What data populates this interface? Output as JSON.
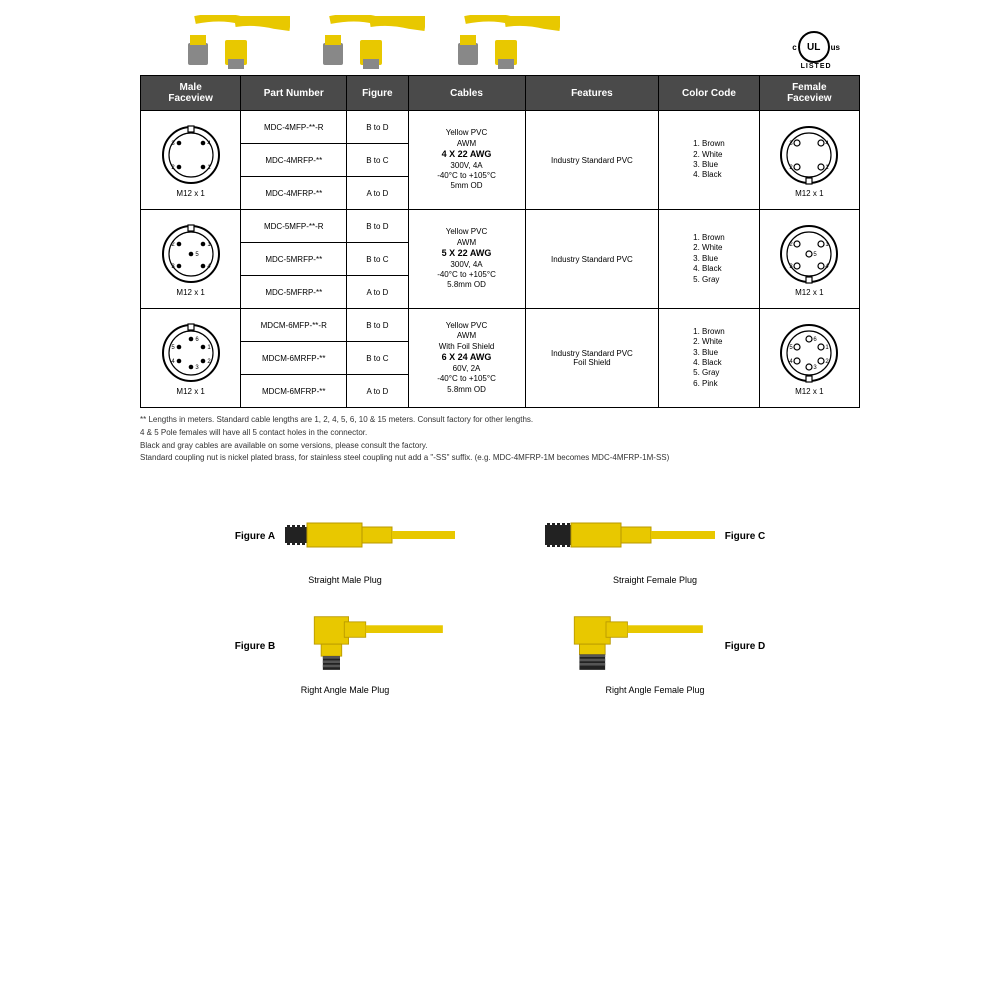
{
  "ulLogo": {
    "c": "c",
    "ul": "UL",
    "us": "us",
    "listed": "LISTED"
  },
  "headers": [
    "Male\nFaceview",
    "Part Number",
    "Figure",
    "Cables",
    "Features",
    "Color Code",
    "Female\nFaceview"
  ],
  "rows": [
    {
      "maleLabel": "M12 x 1",
      "femaleLabel": "M12 x 1",
      "pins": 4,
      "parts": [
        {
          "pn": "MDC-4MFP-**-R",
          "fig": "B to D"
        },
        {
          "pn": "MDC-4MRFP-**",
          "fig": "B to C"
        },
        {
          "pn": "MDC-4MFRP-**",
          "fig": "A to D"
        }
      ],
      "cable": {
        "l1": "Yellow PVC",
        "l2": "AWM",
        "awg": "4 X 22 AWG",
        "v": "300V, 4A",
        "t": "-40°C to +105°C",
        "od": "5mm OD"
      },
      "features": "Industry Standard PVC",
      "colors": [
        "1. Brown",
        "2. White",
        "3. Blue",
        "4. Black"
      ]
    },
    {
      "maleLabel": "M12 x 1",
      "femaleLabel": "M12 x 1",
      "pins": 5,
      "parts": [
        {
          "pn": "MDC-5MFP-**-R",
          "fig": "B to D"
        },
        {
          "pn": "MDC-5MRFP-**",
          "fig": "B to C"
        },
        {
          "pn": "MDC-5MFRP-**",
          "fig": "A to D"
        }
      ],
      "cable": {
        "l1": "Yellow PVC",
        "l2": "AWM",
        "awg": "5 X 22 AWG",
        "v": "300V, 4A",
        "t": "-40°C to +105°C",
        "od": "5.8mm OD"
      },
      "features": "Industry Standard PVC",
      "colors": [
        "1. Brown",
        "2. White",
        "3. Blue",
        "4. Black",
        "5. Gray"
      ]
    },
    {
      "maleLabel": "M12 x 1",
      "femaleLabel": "M12 x 1",
      "pins": 6,
      "parts": [
        {
          "pn": "MDCM-6MFP-**-R",
          "fig": "B to D"
        },
        {
          "pn": "MDCM-6MRFP-**",
          "fig": "B to C"
        },
        {
          "pn": "MDCM-6MFRP-**",
          "fig": "A to D"
        }
      ],
      "cable": {
        "l1": "Yellow PVC",
        "l2": "AWM",
        "l3": "With Foil Shield",
        "awg": "6 X 24 AWG",
        "v": "60V, 2A",
        "t": "-40°C to +105°C",
        "od": "5.8mm OD"
      },
      "features": "Industry Standard PVC\nFoil Shield",
      "colors": [
        "1. Brown",
        "2. White",
        "3. Blue",
        "4. Black",
        "5. Gray",
        "6. Pink"
      ]
    }
  ],
  "notes": [
    "** Lengths in meters.  Standard cable lengths are 1, 2, 4, 5, 6, 10 & 15 meters. Consult factory for other lengths.",
    "4 & 5 Pole females will have all 5 contact holes in the connector.",
    "Black and gray cables are available on some versions, please consult the factory.",
    "Standard coupling nut is nickel plated brass, for stainless steel coupling nut add a \"-SS\" suffix. (e.g. MDC-4MFRP-1M becomes MDC-4MFRP-1M-SS)"
  ],
  "figures": [
    {
      "id": "A",
      "label": "Figure A",
      "caption": "Straight Male Plug",
      "type": "straight-male",
      "side": "left"
    },
    {
      "id": "C",
      "label": "Figure C",
      "caption": "Straight Female Plug",
      "type": "straight-female",
      "side": "right"
    },
    {
      "id": "B",
      "label": "Figure B",
      "caption": "Right Angle Male Plug",
      "type": "angle-male",
      "side": "left"
    },
    {
      "id": "D",
      "label": "Figure D",
      "caption": "Right Angle Female Plug",
      "type": "angle-female",
      "side": "right"
    }
  ],
  "colors": {
    "cable": "#e8c800",
    "cableDark": "#b89800",
    "connector": "#888",
    "connectorDark": "#555",
    "black": "#222"
  }
}
